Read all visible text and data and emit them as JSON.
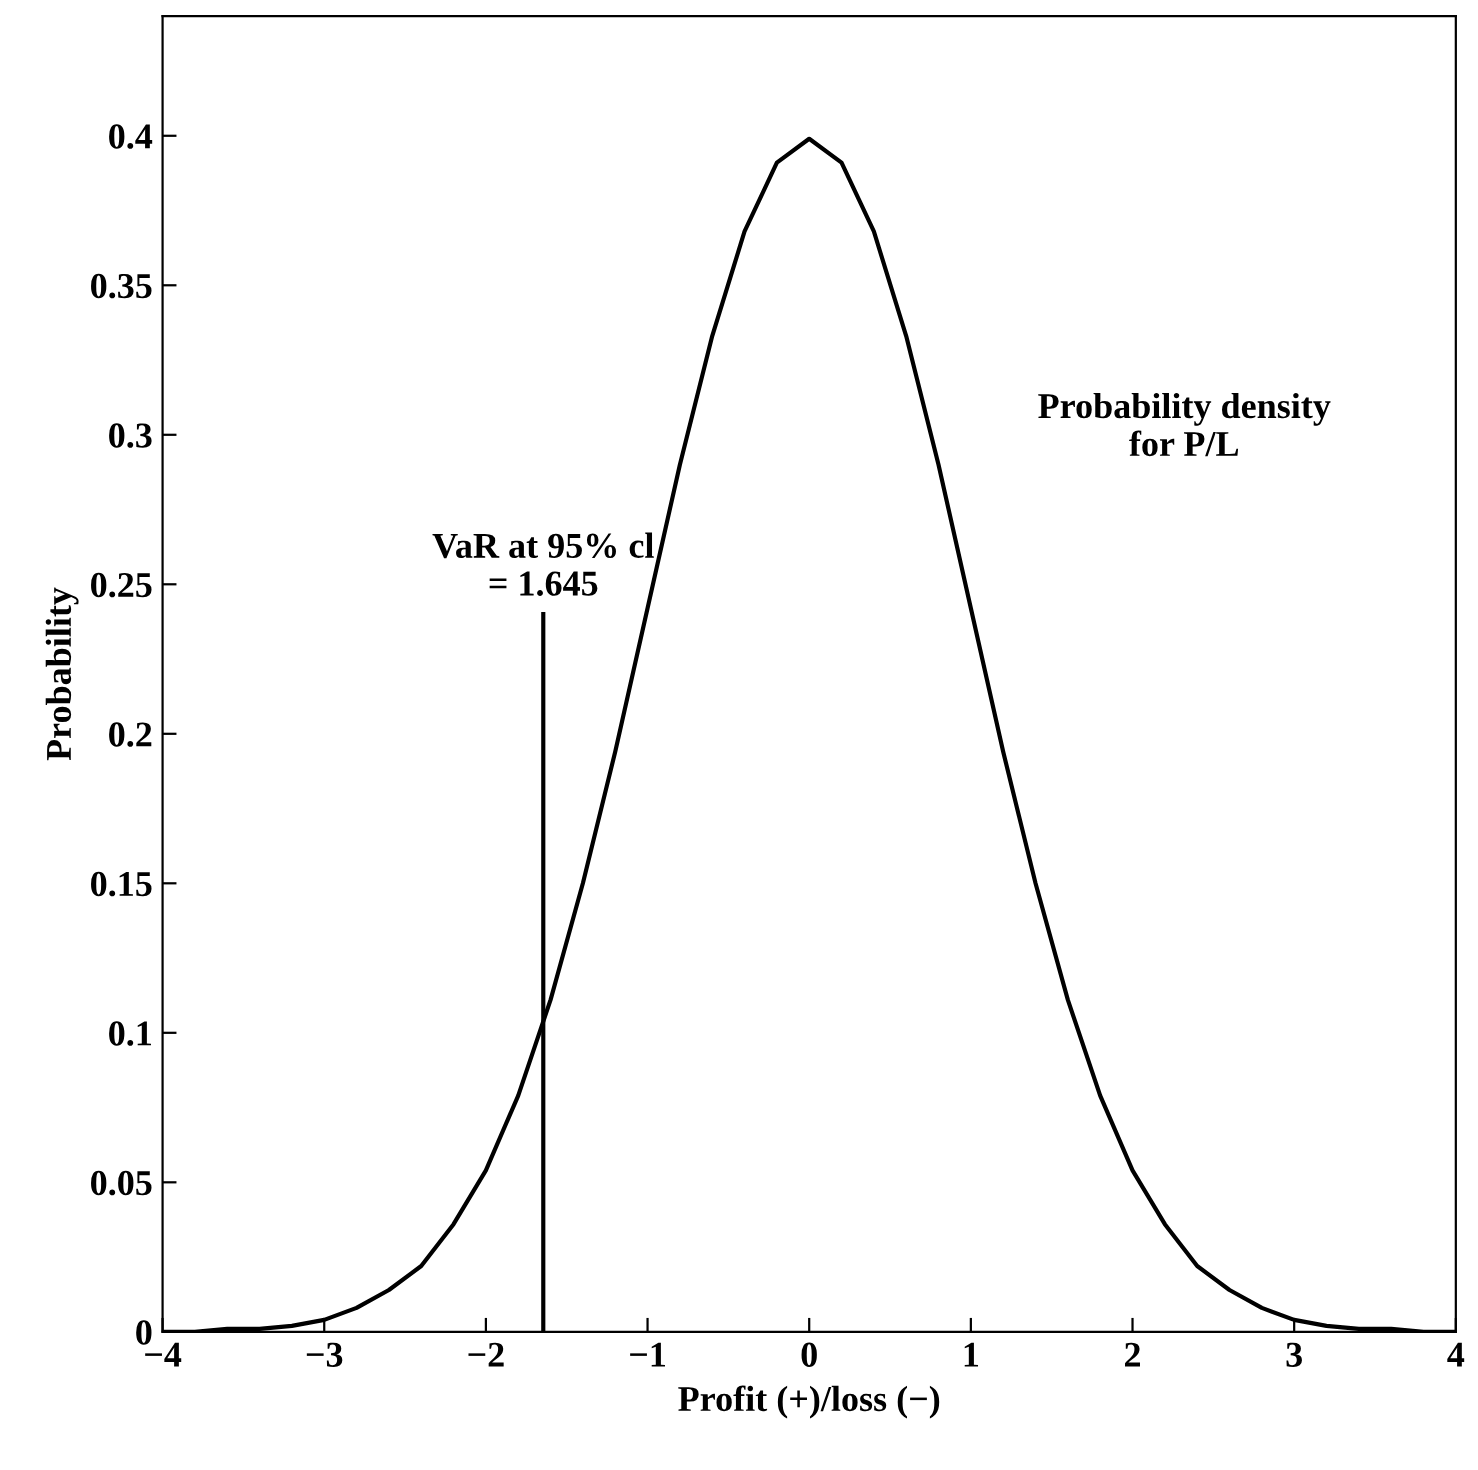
{
  "chart_data": {
    "type": "line",
    "xlabel": "Profit (+)/loss (−)",
    "ylabel": "Probability",
    "series": [
      {
        "color": "#000000",
        "x": [
          -4,
          -3.8,
          -3.6,
          -3.4,
          -3.2,
          -3,
          -2.8,
          -2.6,
          -2.4,
          -2.2,
          -2,
          -1.8,
          -1.6,
          -1.4,
          -1.2,
          -1,
          -0.8,
          -0.6,
          -0.4,
          -0.2,
          0,
          0.2,
          0.4,
          0.6,
          0.8,
          1,
          1.2,
          1.4,
          1.6,
          1.8,
          2,
          2.2,
          2.4,
          2.6,
          2.8,
          3,
          3.2,
          3.4,
          3.6,
          3.8,
          4
        ],
        "values": [
          0.0,
          0.0,
          0.001,
          0.001,
          0.002,
          0.004,
          0.008,
          0.014,
          0.022,
          0.036,
          0.054,
          0.079,
          0.111,
          0.15,
          0.194,
          0.242,
          0.29,
          0.333,
          0.368,
          0.391,
          0.399,
          0.391,
          0.368,
          0.333,
          0.29,
          0.242,
          0.194,
          0.15,
          0.111,
          0.079,
          0.054,
          0.036,
          0.022,
          0.014,
          0.008,
          0.004,
          0.002,
          0.001,
          0.001,
          0.0,
          0.0
        ]
      },
      {
        "color": "#000000",
        "x": [
          -1.645,
          -1.645
        ],
        "values": [
          0,
          0.24
        ]
      }
    ],
    "annotations": [
      {
        "text": "VaR at 95% cl\n= 1.645",
        "x": -1.645,
        "y": 0.24
      },
      "Probability density\nfor P/L"
    ],
    "xlim": [
      -4,
      4
    ],
    "ylim": [
      0,
      0.44
    ],
    "xticks": [
      {
        "value": -4,
        "label": "−4"
      },
      {
        "value": -3,
        "label": "−3"
      },
      {
        "value": -2,
        "label": "−2"
      },
      {
        "value": -1,
        "label": "−1"
      },
      0,
      1,
      2,
      3,
      4
    ],
    "yticks": [
      0,
      0.05,
      0.1,
      0.15,
      0.2,
      0.25,
      0.3,
      0.35,
      0.4
    ],
    "grid": false,
    "marker": "none",
    "line_style": "solid"
  }
}
